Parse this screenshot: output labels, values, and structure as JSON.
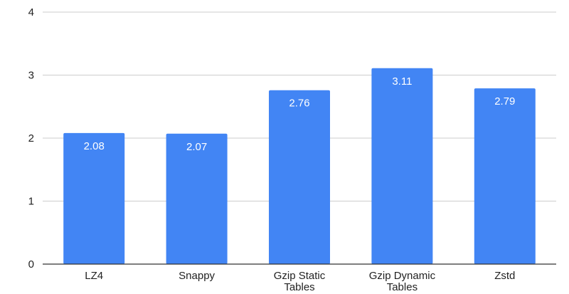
{
  "chart_data": {
    "type": "bar",
    "categories": [
      [
        "LZ4"
      ],
      [
        "Snappy"
      ],
      [
        "Gzip Static",
        "Tables"
      ],
      [
        "Gzip Dynamic",
        "Tables"
      ],
      [
        "Zstd"
      ]
    ],
    "values": [
      2.08,
      2.07,
      2.76,
      3.11,
      2.79
    ],
    "data_labels": [
      "2.08",
      "2.07",
      "2.76",
      "3.11",
      "2.79"
    ],
    "y_ticks": [
      "0",
      "1",
      "2",
      "3",
      "4"
    ],
    "ylim": [
      0,
      4
    ],
    "grid": true,
    "legend": "none",
    "title": "",
    "xlabel": "",
    "ylabel": "",
    "colors": {
      "bar": "#4285f4",
      "grid": "#cccccc",
      "axis": "#333333",
      "label": "#222222",
      "data_label": "#ffffff"
    }
  }
}
